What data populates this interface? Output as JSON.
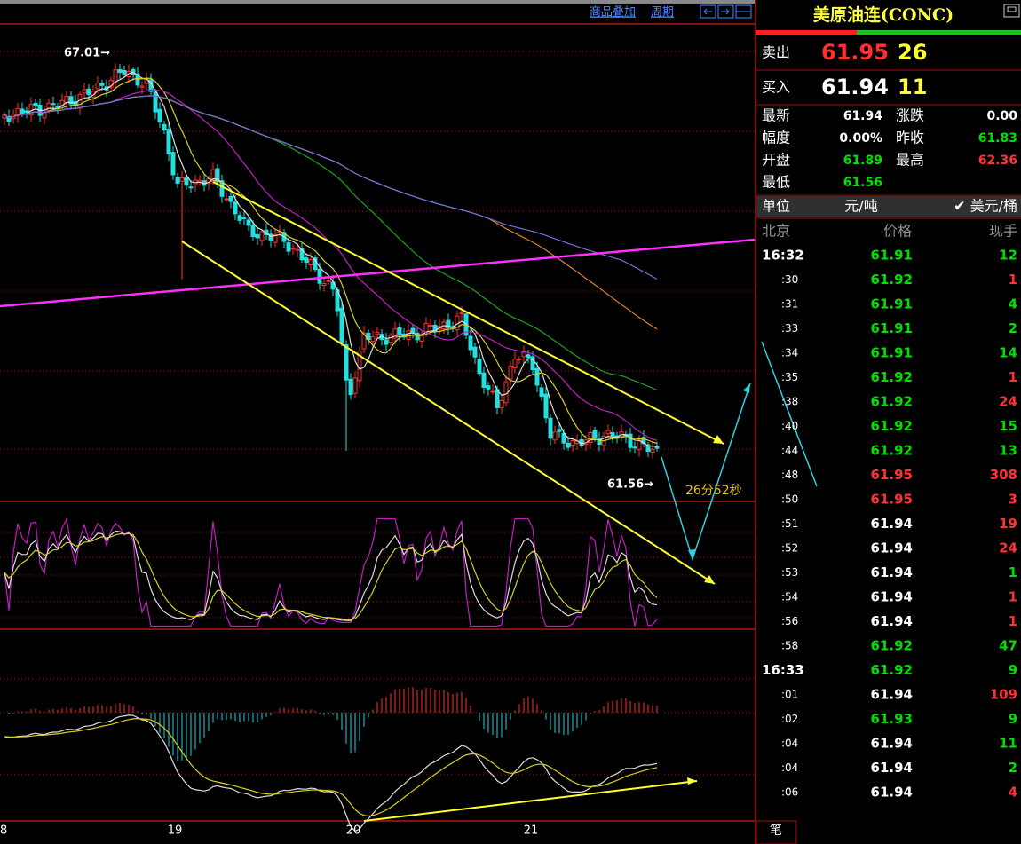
{
  "toolbar": {
    "overlay": "商品叠加",
    "period": "周期"
  },
  "chart": {
    "high_label": "67.01→",
    "low_label": "61.56→",
    "countdown": "26分52秒",
    "x_labels": [
      "8",
      "19",
      "20",
      "21"
    ]
  },
  "quote": {
    "title": "美原油连(CONC)",
    "sell": {
      "label": "卖出",
      "price": "61.95",
      "volume": "26"
    },
    "buy": {
      "label": "买入",
      "price": "61.94",
      "volume": "11"
    },
    "stats": [
      {
        "label": "最新",
        "value": "61.94",
        "color": "#ffffff",
        "label2": "涨跌",
        "value2": "0.00",
        "color2": "#ffffff"
      },
      {
        "label": "幅度",
        "value": "0.00%",
        "color": "#ffffff",
        "label2": "昨收",
        "value2": "61.83",
        "color2": "#00e000"
      },
      {
        "label": "开盘",
        "value": "61.89",
        "color": "#00e000",
        "label2": "最高",
        "value2": "62.36",
        "color2": "#ff3333"
      },
      {
        "label": "最低",
        "value": "61.56",
        "color": "#00e000"
      }
    ],
    "unit": {
      "label": "单位",
      "option1": "元/吨",
      "option2": "✔ 美元/桶"
    }
  },
  "ticks": {
    "header": [
      "北京",
      "价格",
      "现手"
    ],
    "rows": [
      {
        "time": "16:32",
        "price": "61.91",
        "volume": "12",
        "price_color": "#00e000",
        "volume_color": "#00e000"
      },
      {
        "time": ":30",
        "price": "61.92",
        "volume": "1",
        "price_color": "#00e000",
        "volume_color": "#ff3333"
      },
      {
        "time": ":31",
        "price": "61.91",
        "volume": "4",
        "price_color": "#00e000",
        "volume_color": "#00e000"
      },
      {
        "time": ":33",
        "price": "61.91",
        "volume": "2",
        "price_color": "#00e000",
        "volume_color": "#00e000"
      },
      {
        "time": ":34",
        "price": "61.91",
        "volume": "14",
        "price_color": "#00e000",
        "volume_color": "#00e000"
      },
      {
        "time": ":35",
        "price": "61.92",
        "volume": "1",
        "price_color": "#00e000",
        "volume_color": "#ff3333"
      },
      {
        "time": ":38",
        "price": "61.92",
        "volume": "24",
        "price_color": "#00e000",
        "volume_color": "#ff3333"
      },
      {
        "time": ":40",
        "price": "61.92",
        "volume": "15",
        "price_color": "#00e000",
        "volume_color": "#00e000"
      },
      {
        "time": ":44",
        "price": "61.92",
        "volume": "13",
        "price_color": "#00e000",
        "volume_color": "#00e000"
      },
      {
        "time": ":48",
        "price": "61.95",
        "volume": "308",
        "price_color": "#ff3333",
        "volume_color": "#ff3333"
      },
      {
        "time": ":50",
        "price": "61.95",
        "volume": "3",
        "price_color": "#ff3333",
        "volume_color": "#ff3333"
      },
      {
        "time": ":51",
        "price": "61.94",
        "volume": "19",
        "price_color": "#ffffff",
        "volume_color": "#ff3333"
      },
      {
        "time": ":52",
        "price": "61.94",
        "volume": "24",
        "price_color": "#ffffff",
        "volume_color": "#ff3333"
      },
      {
        "time": ":53",
        "price": "61.94",
        "volume": "1",
        "price_color": "#ffffff",
        "volume_color": "#00e000"
      },
      {
        "time": ":54",
        "price": "61.94",
        "volume": "1",
        "price_color": "#ffffff",
        "volume_color": "#ff3333"
      },
      {
        "time": ":56",
        "price": "61.94",
        "volume": "1",
        "price_color": "#ffffff",
        "volume_color": "#ff3333"
      },
      {
        "time": ":58",
        "price": "61.92",
        "volume": "47",
        "price_color": "#00e000",
        "volume_color": "#00e000"
      },
      {
        "time": "16:33",
        "price": "61.92",
        "volume": "9",
        "price_color": "#00e000",
        "volume_color": "#00e000"
      },
      {
        "time": ":01",
        "price": "61.94",
        "volume": "109",
        "price_color": "#ffffff",
        "volume_color": "#ff3333"
      },
      {
        "time": ":02",
        "price": "61.93",
        "volume": "9",
        "price_color": "#00e000",
        "volume_color": "#00e000"
      },
      {
        "time": ":04",
        "price": "61.94",
        "volume": "11",
        "price_color": "#ffffff",
        "volume_color": "#00e000"
      },
      {
        "time": ":04",
        "price": "61.94",
        "volume": "2",
        "price_color": "#ffffff",
        "volume_color": "#00e000"
      },
      {
        "time": ":06",
        "price": "61.94",
        "volume": "4",
        "price_color": "#ffffff",
        "volume_color": "#ff3333"
      }
    ]
  },
  "tab": "笔"
}
